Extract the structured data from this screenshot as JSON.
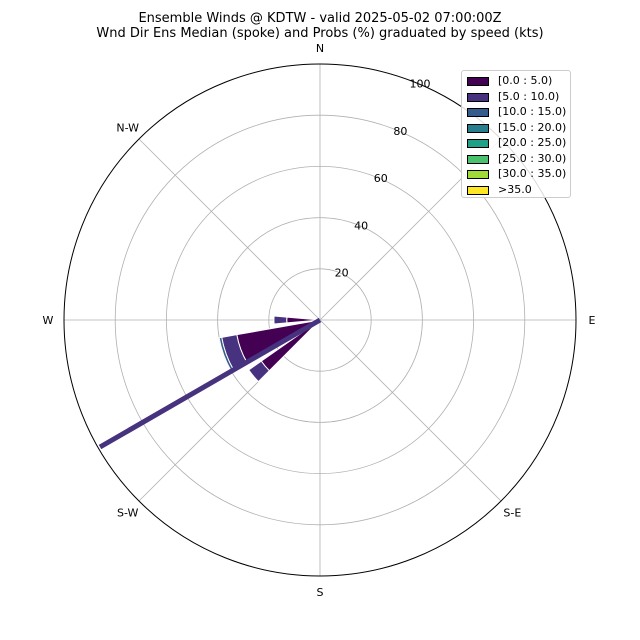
{
  "title_line1": "Ensemble Winds @ KDTW - valid 2025-05-02 07:00:00Z",
  "title_line2": "Wnd Dir Ens Median (spoke) and Probs (%) graduated by speed (kts)",
  "chart_data": {
    "type": "windrose",
    "direction_labels": [
      "N",
      "N-E",
      "E",
      "S-E",
      "S",
      "S-W",
      "W",
      "N-W"
    ],
    "direction_labels_shown": [
      "N",
      "E",
      "S-E",
      "S",
      "S-W",
      "W",
      "N-W"
    ],
    "radial_ticks": [
      "20",
      "40",
      "60",
      "80",
      "100"
    ],
    "rmax": 100,
    "grid": true,
    "legend_position": "top-right",
    "speed_bins": [
      {
        "label": "[0.0 : 5.0)",
        "color": "#440154"
      },
      {
        "label": "[5.0 : 10.0)",
        "color": "#46327e"
      },
      {
        "label": "[10.0 : 15.0)",
        "color": "#365c8d"
      },
      {
        "label": "[15.0 : 20.0)",
        "color": "#277f8e"
      },
      {
        "label": "[20.0 : 25.0)",
        "color": "#1fa187"
      },
      {
        "label": "[25.0 : 30.0)",
        "color": "#4ac16d"
      },
      {
        "label": "[30.0 : 35.0)",
        "color": "#a0da39"
      },
      {
        "label": ">35.0",
        "color": "#fde725"
      }
    ],
    "wedges": [
      {
        "direction_deg": 270,
        "width_deg": 10,
        "cumulative": [
          0,
          13,
          18
        ]
      },
      {
        "direction_deg": 250,
        "width_deg": 20,
        "cumulative": [
          0,
          33,
          39,
          40
        ]
      },
      {
        "direction_deg": 230,
        "width_deg": 10,
        "cumulative": [
          0,
          28,
          34
        ]
      }
    ],
    "median_spoke": {
      "direction_deg": 240,
      "length": 100,
      "color": "#46327e"
    }
  }
}
